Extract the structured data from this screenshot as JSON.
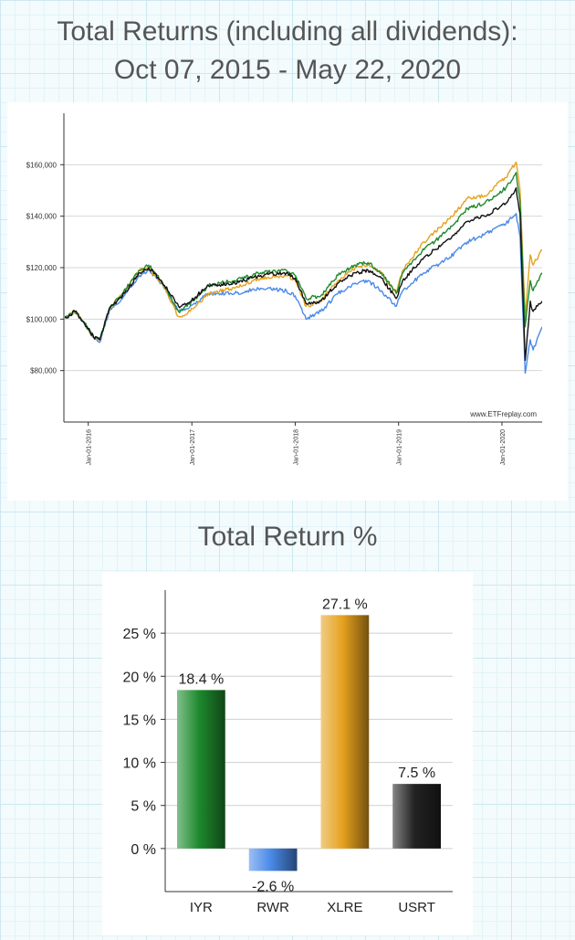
{
  "page": {
    "title_line1": "Total Returns (including all dividends):",
    "title_line2": "Oct 07, 2015 - May 22, 2020",
    "bar_title": "Total Return %"
  },
  "chart_data": [
    {
      "type": "line",
      "watermark": "www.ETFreplay.com",
      "y_ticks": [
        "$80,000",
        "$100,000",
        "$120,000",
        "$140,000",
        "$160,000"
      ],
      "y_tick_values": [
        80000,
        100000,
        120000,
        140000,
        160000
      ],
      "x_ticks": [
        "Jan-01-2016",
        "Jan-01-2017",
        "Jan-01-2018",
        "Jan-01-2019",
        "Jan-01-2020"
      ],
      "x_tick_values": [
        "2016-01-01",
        "2017-01-01",
        "2018-01-01",
        "2019-01-01",
        "2020-01-01"
      ],
      "xlim": [
        "2015-10-07",
        "2020-05-22"
      ],
      "ylim": [
        60000,
        180000
      ],
      "grid": true,
      "legend": "none",
      "series": [
        {
          "color": "#4a8ae8",
          "points": [
            [
              "2015-10-07",
              100000
            ],
            [
              "2015-11-15",
              103000
            ],
            [
              "2015-12-15",
              99000
            ],
            [
              "2016-01-20",
              93000
            ],
            [
              "2016-02-11",
              91000
            ],
            [
              "2016-03-15",
              103000
            ],
            [
              "2016-05-01",
              108000
            ],
            [
              "2016-07-01",
              117000
            ],
            [
              "2016-08-01",
              119000
            ],
            [
              "2016-09-15",
              114000
            ],
            [
              "2016-11-15",
              103000
            ],
            [
              "2016-12-15",
              104000
            ],
            [
              "2017-03-01",
              110000
            ],
            [
              "2017-06-01",
              110000
            ],
            [
              "2017-09-01",
              112000
            ],
            [
              "2017-12-01",
              111000
            ],
            [
              "2018-01-01",
              109000
            ],
            [
              "2018-02-08",
              100000
            ],
            [
              "2018-04-01",
              103000
            ],
            [
              "2018-06-01",
              110000
            ],
            [
              "2018-08-01",
              114000
            ],
            [
              "2018-09-15",
              115000
            ],
            [
              "2018-11-01",
              111000
            ],
            [
              "2018-12-24",
              105000
            ],
            [
              "2019-01-15",
              111000
            ],
            [
              "2019-04-01",
              118000
            ],
            [
              "2019-07-01",
              124000
            ],
            [
              "2019-09-01",
              130000
            ],
            [
              "2019-11-01",
              133000
            ],
            [
              "2020-01-15",
              137000
            ],
            [
              "2020-02-20",
              141000
            ],
            [
              "2020-03-05",
              132000
            ],
            [
              "2020-03-23",
              79000
            ],
            [
              "2020-04-10",
              92000
            ],
            [
              "2020-04-20",
              88000
            ],
            [
              "2020-05-22",
              97000
            ]
          ]
        },
        {
          "color": "#e6a21f",
          "points": [
            [
              "2015-10-07",
              100000
            ],
            [
              "2015-11-15",
              103000
            ],
            [
              "2015-12-15",
              99000
            ],
            [
              "2016-01-20",
              93000
            ],
            [
              "2016-02-11",
              92000
            ],
            [
              "2016-03-15",
              104000
            ],
            [
              "2016-05-01",
              110000
            ],
            [
              "2016-07-01",
              119000
            ],
            [
              "2016-08-01",
              120000
            ],
            [
              "2016-09-15",
              114000
            ],
            [
              "2016-11-15",
              101000
            ],
            [
              "2016-12-15",
              102000
            ],
            [
              "2017-03-01",
              110000
            ],
            [
              "2017-06-01",
              112000
            ],
            [
              "2017-09-01",
              116000
            ],
            [
              "2017-12-01",
              117000
            ],
            [
              "2018-01-01",
              115000
            ],
            [
              "2018-02-08",
              105000
            ],
            [
              "2018-04-01",
              107000
            ],
            [
              "2018-06-01",
              115000
            ],
            [
              "2018-08-01",
              120000
            ],
            [
              "2018-09-15",
              121000
            ],
            [
              "2018-11-01",
              118000
            ],
            [
              "2018-12-24",
              110000
            ],
            [
              "2019-01-15",
              119000
            ],
            [
              "2019-04-01",
              130000
            ],
            [
              "2019-07-01",
              139000
            ],
            [
              "2019-09-01",
              147000
            ],
            [
              "2019-11-01",
              148000
            ],
            [
              "2020-01-15",
              155000
            ],
            [
              "2020-02-20",
              161000
            ],
            [
              "2020-03-05",
              150000
            ],
            [
              "2020-03-23",
              101000
            ],
            [
              "2020-04-10",
              125000
            ],
            [
              "2020-04-20",
              121000
            ],
            [
              "2020-05-22",
              127000
            ]
          ]
        },
        {
          "color": "#1e8a2e",
          "points": [
            [
              "2015-10-07",
              100000
            ],
            [
              "2015-11-15",
              103000
            ],
            [
              "2015-12-15",
              99000
            ],
            [
              "2016-01-20",
              93000
            ],
            [
              "2016-02-11",
              92000
            ],
            [
              "2016-03-15",
              104000
            ],
            [
              "2016-05-01",
              110000
            ],
            [
              "2016-07-01",
              119000
            ],
            [
              "2016-08-01",
              121000
            ],
            [
              "2016-09-15",
              115000
            ],
            [
              "2016-11-15",
              103000
            ],
            [
              "2016-12-15",
              105000
            ],
            [
              "2017-03-01",
              113000
            ],
            [
              "2017-06-01",
              115000
            ],
            [
              "2017-09-01",
              118000
            ],
            [
              "2017-12-01",
              119000
            ],
            [
              "2018-01-01",
              117000
            ],
            [
              "2018-02-08",
              108000
            ],
            [
              "2018-04-01",
              109000
            ],
            [
              "2018-06-01",
              117000
            ],
            [
              "2018-08-01",
              121000
            ],
            [
              "2018-09-15",
              122000
            ],
            [
              "2018-11-01",
              118000
            ],
            [
              "2018-12-24",
              110000
            ],
            [
              "2019-01-15",
              118000
            ],
            [
              "2019-04-01",
              127000
            ],
            [
              "2019-07-01",
              135000
            ],
            [
              "2019-09-01",
              143000
            ],
            [
              "2019-11-01",
              145000
            ],
            [
              "2020-01-15",
              151000
            ],
            [
              "2020-02-20",
              157000
            ],
            [
              "2020-03-05",
              146000
            ],
            [
              "2020-03-23",
              97000
            ],
            [
              "2020-04-10",
              115000
            ],
            [
              "2020-04-20",
              111000
            ],
            [
              "2020-05-22",
              118000
            ]
          ]
        },
        {
          "color": "#111111",
          "points": [
            [
              "2015-10-07",
              100000
            ],
            [
              "2015-11-15",
              103000
            ],
            [
              "2015-12-15",
              99000
            ],
            [
              "2016-01-20",
              93000
            ],
            [
              "2016-02-11",
              92000
            ],
            [
              "2016-03-15",
              104000
            ],
            [
              "2016-05-01",
              109000
            ],
            [
              "2016-07-01",
              118000
            ],
            [
              "2016-08-01",
              120000
            ],
            [
              "2016-09-15",
              115000
            ],
            [
              "2016-11-15",
              105000
            ],
            [
              "2016-12-15",
              106000
            ],
            [
              "2017-03-01",
              113000
            ],
            [
              "2017-06-01",
              114000
            ],
            [
              "2017-09-01",
              117000
            ],
            [
              "2017-12-01",
              118000
            ],
            [
              "2018-01-01",
              116000
            ],
            [
              "2018-02-08",
              106000
            ],
            [
              "2018-04-01",
              107000
            ],
            [
              "2018-06-01",
              114000
            ],
            [
              "2018-08-01",
              118000
            ],
            [
              "2018-09-15",
              119000
            ],
            [
              "2018-11-01",
              116000
            ],
            [
              "2018-12-24",
              108000
            ],
            [
              "2019-01-15",
              115000
            ],
            [
              "2019-04-01",
              124000
            ],
            [
              "2019-07-01",
              131000
            ],
            [
              "2019-09-01",
              138000
            ],
            [
              "2019-11-01",
              140000
            ],
            [
              "2020-01-15",
              145000
            ],
            [
              "2020-02-20",
              151000
            ],
            [
              "2020-03-05",
              141000
            ],
            [
              "2020-03-23",
              84000
            ],
            [
              "2020-04-10",
              107000
            ],
            [
              "2020-04-20",
              103000
            ],
            [
              "2020-05-22",
              107000
            ]
          ]
        }
      ]
    },
    {
      "type": "bar",
      "categories": [
        "IYR",
        "RWR",
        "XLRE",
        "USRT"
      ],
      "values": [
        18.4,
        -2.6,
        27.1,
        7.5
      ],
      "value_labels": [
        "18.4 %",
        "-2.6 %",
        "27.1 %",
        "7.5 %"
      ],
      "colors": [
        "#1e8a2e",
        "#4a8ae8",
        "#e6a21f",
        "#222222"
      ],
      "y_ticks": [
        "0 %",
        "5 %",
        "10 %",
        "15 %",
        "20 %",
        "25 %"
      ],
      "y_tick_values": [
        0,
        5,
        10,
        15,
        20,
        25
      ],
      "ylim": [
        -5,
        30
      ],
      "grid": true
    }
  ]
}
